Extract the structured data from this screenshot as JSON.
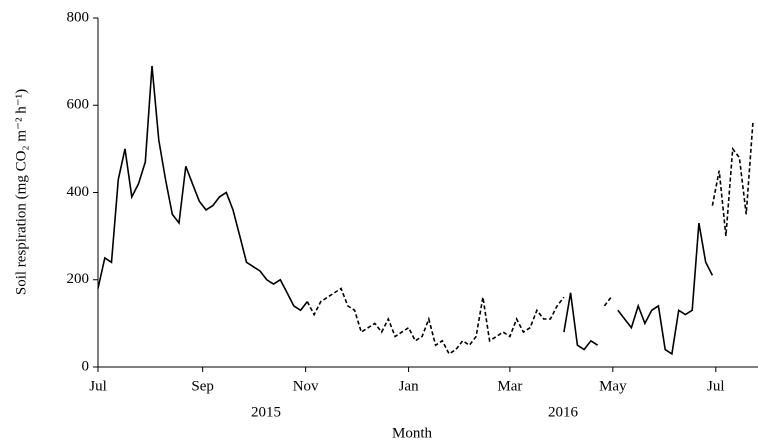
{
  "chart_data": {
    "type": "line",
    "ylabel": "Soil respiration (mg CO₂ m⁻² h⁻¹)",
    "xlabel": "Month",
    "year_labels": [
      "2015",
      "2016"
    ],
    "xlim": [
      0,
      391
    ],
    "ylim": [
      0,
      800
    ],
    "yticks": [
      0,
      200,
      400,
      600,
      800
    ],
    "xticks": [
      {
        "value": 0,
        "label": "Jul"
      },
      {
        "value": 62,
        "label": "Sep"
      },
      {
        "value": 123,
        "label": "Nov"
      },
      {
        "value": 184,
        "label": "Jan"
      },
      {
        "value": 244,
        "label": "Mar"
      },
      {
        "value": 305,
        "label": "May"
      },
      {
        "value": 366,
        "label": "Jul"
      }
    ],
    "grid": false,
    "x": [
      0,
      4,
      8,
      12,
      16,
      20,
      24,
      28,
      32,
      36,
      40,
      44,
      48,
      52,
      56,
      60,
      64,
      68,
      72,
      76,
      80,
      84,
      88,
      92,
      96,
      100,
      104,
      108,
      112,
      116,
      120,
      124,
      128,
      132,
      136,
      140,
      144,
      148,
      152,
      156,
      160,
      164,
      168,
      172,
      176,
      180,
      184,
      188,
      192,
      196,
      200,
      204,
      208,
      212,
      216,
      220,
      224,
      228,
      232,
      236,
      240,
      244,
      248,
      252,
      256,
      260,
      264,
      268,
      272,
      276,
      280,
      284,
      288,
      292,
      296,
      300,
      304,
      308,
      312,
      316,
      320,
      324,
      328,
      332,
      336,
      340,
      344,
      348,
      352,
      356,
      360,
      364,
      368,
      372,
      376,
      380,
      384,
      388
    ],
    "series": [
      {
        "color": "#000000",
        "style": "solid",
        "values": [
          180,
          250,
          240,
          430,
          500,
          390,
          420,
          470,
          690,
          520,
          430,
          350,
          330,
          460,
          420,
          380,
          360,
          370,
          390,
          400,
          360,
          300,
          240,
          230,
          220,
          200,
          190,
          200,
          170,
          140,
          130,
          150,
          null,
          null,
          null,
          null,
          null,
          null,
          null,
          null,
          null,
          null,
          null,
          null,
          null,
          null,
          null,
          null,
          null,
          null,
          null,
          null,
          null,
          null,
          null,
          null,
          null,
          null,
          null,
          null,
          null,
          null,
          null,
          null,
          null,
          null,
          null,
          null,
          null,
          80,
          170,
          50,
          40,
          60,
          50,
          null,
          null,
          130,
          110,
          90,
          140,
          100,
          130,
          140,
          40,
          30,
          130,
          120,
          130,
          330,
          240,
          210,
          null,
          null,
          null,
          null,
          null,
          null
        ]
      },
      {
        "color": "#000000",
        "style": "dashed",
        "values": [
          null,
          null,
          null,
          null,
          null,
          null,
          null,
          null,
          null,
          null,
          null,
          null,
          null,
          null,
          null,
          null,
          null,
          null,
          null,
          null,
          null,
          null,
          null,
          null,
          null,
          null,
          null,
          null,
          null,
          null,
          null,
          150,
          120,
          150,
          160,
          170,
          180,
          140,
          130,
          80,
          90,
          100,
          80,
          110,
          70,
          80,
          90,
          60,
          70,
          110,
          50,
          60,
          30,
          40,
          60,
          50,
          70,
          160,
          60,
          70,
          80,
          70,
          110,
          80,
          90,
          130,
          110,
          110,
          140,
          160,
          null,
          null,
          null,
          null,
          null,
          140,
          160,
          null,
          null,
          null,
          null,
          null,
          null,
          null,
          null,
          null,
          null,
          null,
          null,
          null,
          null,
          370,
          450,
          300,
          500,
          480,
          350,
          560
        ]
      }
    ]
  }
}
